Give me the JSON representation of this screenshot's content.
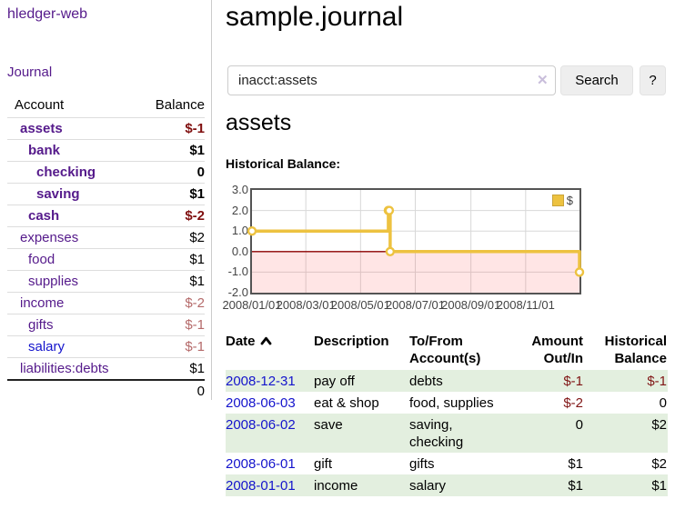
{
  "app": {
    "brand": "hledger-web"
  },
  "sidebar": {
    "nav_journal": "Journal",
    "accounts_table": {
      "headers": {
        "account": "Account",
        "balance": "Balance"
      },
      "rows": [
        {
          "name": "assets",
          "balance": "$-1",
          "depth": 1,
          "bold": true,
          "negative": true,
          "unvisited": false
        },
        {
          "name": "bank",
          "balance": "$1",
          "depth": 2,
          "bold": true,
          "negative": false,
          "unvisited": false
        },
        {
          "name": "checking",
          "balance": "0",
          "depth": 3,
          "bold": true,
          "negative": false,
          "unvisited": false
        },
        {
          "name": "saving",
          "balance": "$1",
          "depth": 3,
          "bold": true,
          "negative": false,
          "unvisited": false
        },
        {
          "name": "cash",
          "balance": "$-2",
          "depth": 2,
          "bold": true,
          "negative": true,
          "unvisited": false
        },
        {
          "name": "expenses",
          "balance": "$2",
          "depth": 1,
          "bold": false,
          "negative": false,
          "unvisited": false
        },
        {
          "name": "food",
          "balance": "$1",
          "depth": 2,
          "bold": false,
          "negative": false,
          "unvisited": false
        },
        {
          "name": "supplies",
          "balance": "$1",
          "depth": 2,
          "bold": false,
          "negative": false,
          "unvisited": false
        },
        {
          "name": "income",
          "balance": "$-2",
          "depth": 1,
          "bold": false,
          "negative": true,
          "unvisited": false
        },
        {
          "name": "gifts",
          "balance": "$-1",
          "depth": 2,
          "bold": false,
          "negative": true,
          "unvisited": false
        },
        {
          "name": "salary",
          "balance": "$-1",
          "depth": 2,
          "bold": false,
          "negative": true,
          "unvisited": true
        },
        {
          "name": "liabilities:debts",
          "balance": "$1",
          "depth": 1,
          "bold": false,
          "negative": false,
          "unvisited": false
        }
      ],
      "total": "0"
    }
  },
  "main": {
    "title": "sample.journal",
    "search": {
      "value": "inacct:assets",
      "clear_icon": "✕",
      "button_label": "Search",
      "help_label": "?"
    },
    "account_heading": "assets",
    "chart_heading": "Historical Balance:"
  },
  "chart_data": {
    "type": "line",
    "step": true,
    "title": "Historical Balance",
    "series": [
      {
        "name": "$",
        "color": "#edc240",
        "points": [
          [
            "2008-01-01",
            1
          ],
          [
            "2008-06-01",
            2
          ],
          [
            "2008-06-02",
            2
          ],
          [
            "2008-06-03",
            0
          ],
          [
            "2008-12-31",
            -1
          ]
        ]
      }
    ],
    "xlim": [
      "2008-01-01",
      "2008-12-31"
    ],
    "ylim": [
      -2,
      3
    ],
    "ytick_labels": [
      "3.0",
      "2.0",
      "1.0",
      "0.0",
      "-1.0",
      "-2.0"
    ],
    "xtick_labels": [
      "2008/01/01",
      "2008/03/01",
      "2008/05/01",
      "2008/07/01",
      "2008/09/01",
      "2008/11/01"
    ],
    "legend": {
      "label": "$",
      "position": "top-right"
    },
    "grid": true,
    "zero_line_color": "#8b0000",
    "negative_region_color": "rgba(255,70,70,0.14)",
    "gridline_color": "#d8d8d8",
    "border_color": "#545454"
  },
  "register_table": {
    "headers": {
      "date": "Date",
      "description": "Description",
      "accounts": "To/From Account(s)",
      "amount": "Amount Out/In",
      "balance": "Historical Balance"
    },
    "sort": {
      "column": "date",
      "direction": "ascending"
    },
    "rows": [
      {
        "date": "2008-12-31",
        "description": "pay off",
        "accounts": "debts",
        "amount": "$-1",
        "amount_negative": true,
        "balance": "$-1",
        "balance_negative": true
      },
      {
        "date": "2008-06-03",
        "description": "eat & shop",
        "accounts": "food, supplies",
        "amount": "$-2",
        "amount_negative": true,
        "balance": "0",
        "balance_negative": false
      },
      {
        "date": "2008-06-02",
        "description": "save",
        "accounts": "saving, checking",
        "amount": "0",
        "amount_negative": false,
        "balance": "$2",
        "balance_negative": false
      },
      {
        "date": "2008-06-01",
        "description": "gift",
        "accounts": "gifts",
        "amount": "$1",
        "amount_negative": false,
        "balance": "$2",
        "balance_negative": false
      },
      {
        "date": "2008-01-01",
        "description": "income",
        "accounts": "salary",
        "amount": "$1",
        "amount_negative": false,
        "balance": "$1",
        "balance_negative": false
      }
    ]
  }
}
